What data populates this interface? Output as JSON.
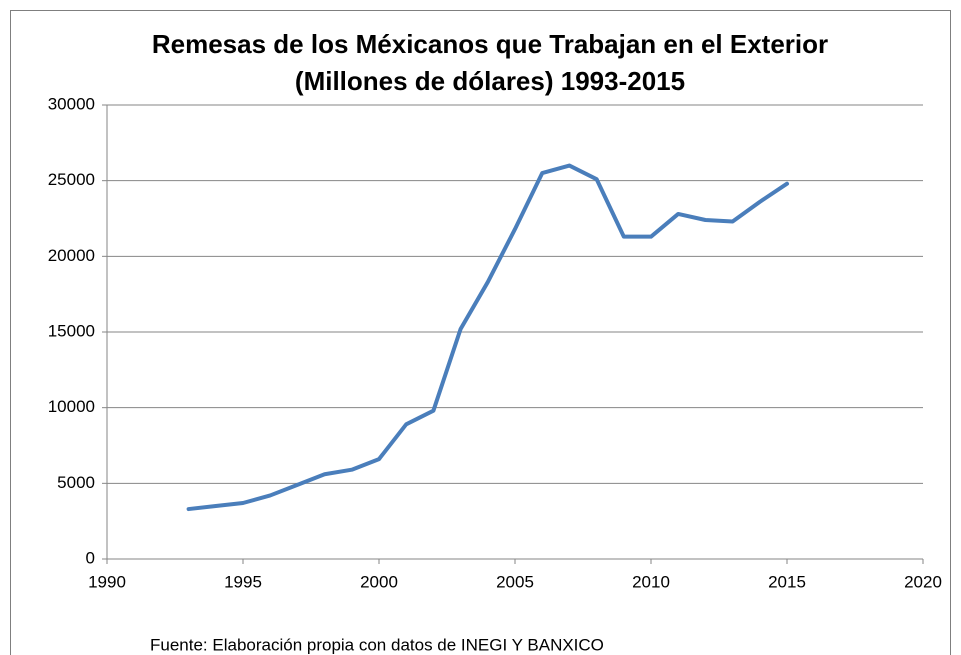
{
  "chart_data": {
    "type": "line",
    "title": [
      "Remesas de los Méxicanos que Trabajan en el Exterior",
      "(Millones de dólares) 1993-2015"
    ],
    "note": "Fuente: Elaboración propia con datos de INEGI Y BANXICO",
    "x": [
      1993,
      1994,
      1995,
      1996,
      1997,
      1998,
      1999,
      2000,
      2001,
      2002,
      2003,
      2004,
      2005,
      2006,
      2007,
      2008,
      2009,
      2010,
      2011,
      2012,
      2013,
      2014,
      2015
    ],
    "series": [
      {
        "name": "Remesas",
        "color": "#4a7ebb",
        "values": [
          3300,
          3500,
          3700,
          4200,
          4900,
          5600,
          5900,
          6600,
          8900,
          9800,
          15200,
          18300,
          21800,
          25500,
          26000,
          25100,
          21300,
          21300,
          22800,
          22400,
          22300,
          23600,
          24800
        ]
      }
    ],
    "xlim": [
      1990,
      2020
    ],
    "xticks": [
      1990,
      1995,
      2000,
      2005,
      2010,
      2015,
      2020
    ],
    "ylim": [
      0,
      30000
    ],
    "yticks": [
      0,
      5000,
      10000,
      15000,
      20000,
      25000,
      30000
    ],
    "grid": true
  }
}
